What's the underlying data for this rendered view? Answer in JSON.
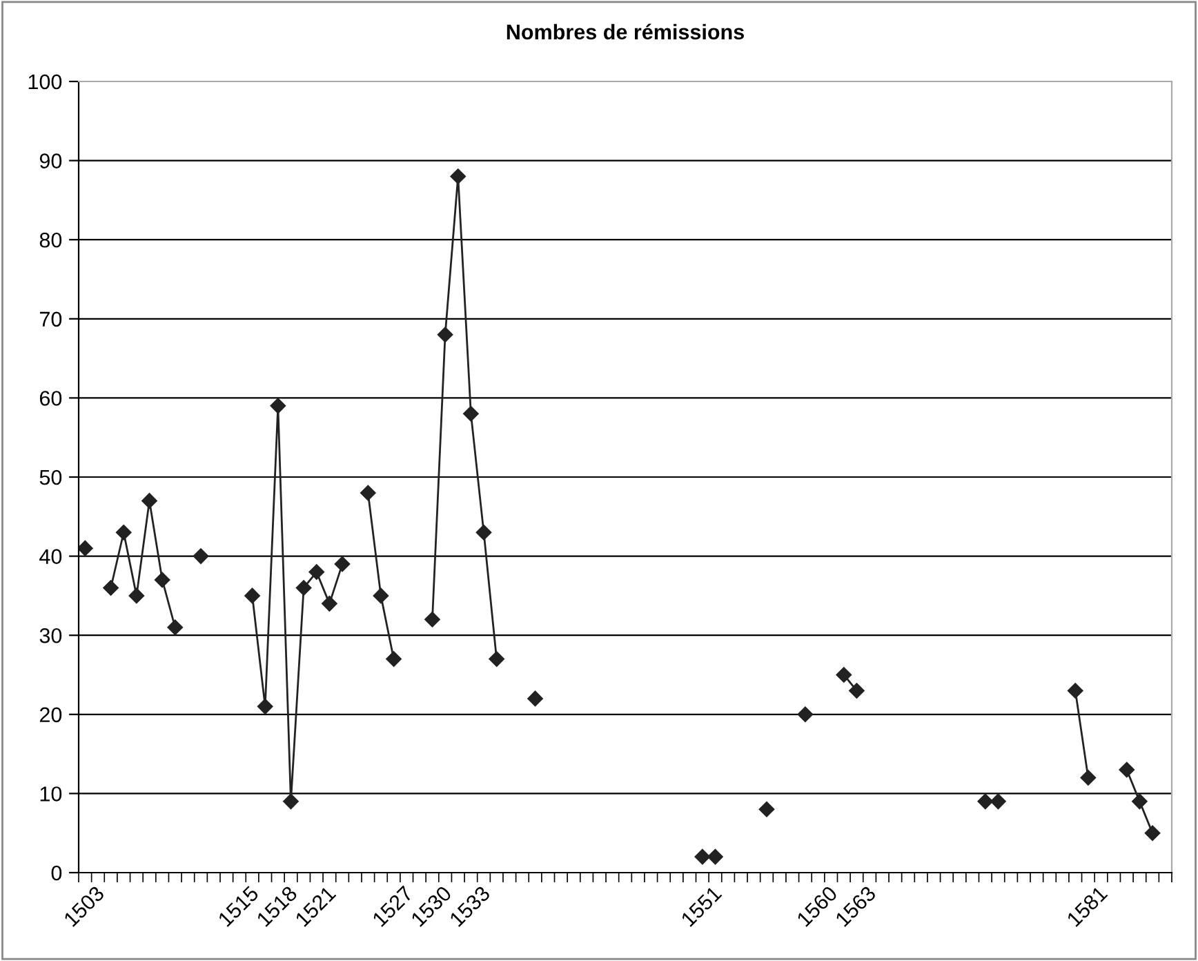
{
  "chart_data": {
    "type": "line",
    "title": "Nombres de rémissions",
    "categories": [
      "1503",
      null,
      null,
      null,
      null,
      null,
      null,
      null,
      null,
      null,
      null,
      null,
      "1515",
      null,
      null,
      "1518",
      null,
      null,
      "1521",
      null,
      null,
      null,
      null,
      null,
      "1527",
      null,
      null,
      "1530",
      null,
      null,
      "1533",
      null,
      null,
      null,
      null,
      null,
      null,
      null,
      null,
      null,
      null,
      null,
      null,
      null,
      null,
      null,
      null,
      null,
      "1551",
      null,
      null,
      null,
      null,
      null,
      null,
      null,
      null,
      "1560",
      null,
      null,
      "1563",
      null,
      null,
      null,
      null,
      null,
      null,
      null,
      null,
      null,
      null,
      null,
      null,
      null,
      null,
      null,
      null,
      null,
      "1581",
      null,
      null,
      null,
      null,
      null,
      null
    ],
    "series": [
      {
        "color": "#222222",
        "values": [
          41,
          null,
          36,
          43,
          35,
          47,
          37,
          31,
          null,
          40,
          null,
          null,
          null,
          35,
          21,
          59,
          9,
          36,
          38,
          34,
          39,
          null,
          48,
          35,
          27,
          null,
          null,
          32,
          68,
          88,
          58,
          43,
          27,
          null,
          null,
          22,
          null,
          null,
          null,
          null,
          null,
          null,
          null,
          null,
          null,
          null,
          null,
          null,
          2,
          2,
          null,
          null,
          null,
          8,
          null,
          null,
          20,
          null,
          null,
          25,
          23,
          null,
          null,
          null,
          null,
          null,
          null,
          null,
          null,
          null,
          9,
          9,
          null,
          null,
          null,
          null,
          null,
          23,
          12,
          null,
          null,
          13,
          9,
          5,
          null
        ]
      }
    ],
    "ylim": [
      0,
      100
    ],
    "yticks": [
      0,
      10,
      20,
      30,
      40,
      50,
      60,
      70,
      80,
      90,
      100
    ],
    "grid": "y",
    "marker": "diamond",
    "line_style": "solid"
  }
}
